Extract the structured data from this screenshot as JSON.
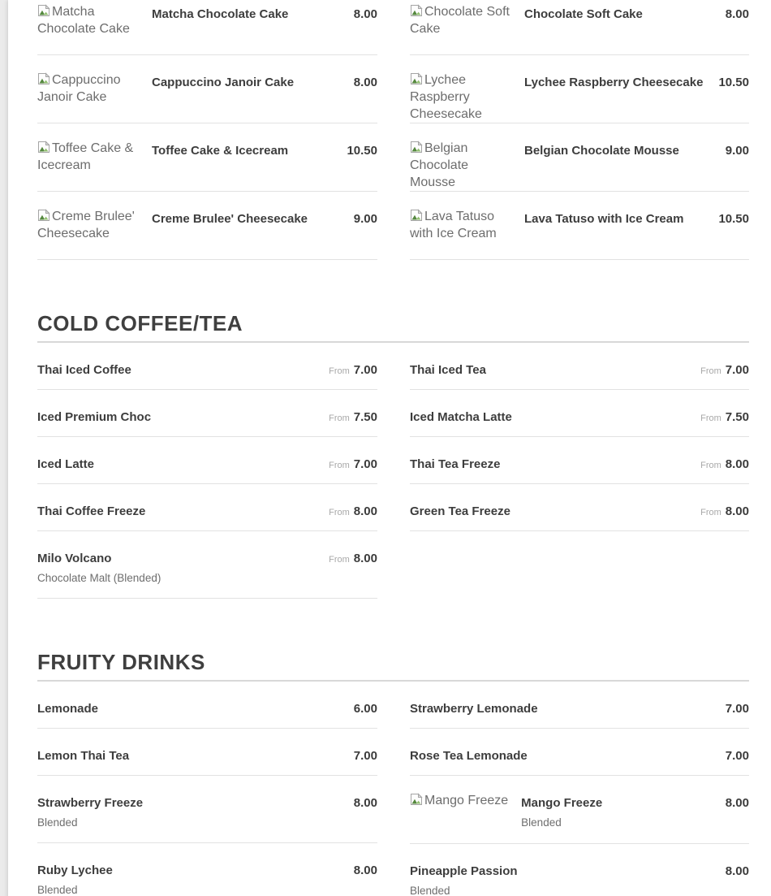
{
  "colors": {
    "page_background": "#ebebeb",
    "card_background": "#ffffff",
    "text_dark": "#3d3d3d",
    "text_muted": "#6d6d6d",
    "from_label_color": "#a8a8a8",
    "divider": "#e2e2e2"
  },
  "icons": {
    "broken_image": "broken-image-icon"
  },
  "menu": {
    "from_label": "From",
    "sections": [
      {
        "heading": null,
        "columns": [
          [
            {
              "name": "Matcha Chocolate Cake",
              "price": "8.00",
              "image_alt": "Matcha Chocolate Cake"
            },
            {
              "name": "Cappuccino Janoir Cake",
              "price": "8.00",
              "image_alt": "Cappuccino Janoir Cake"
            },
            {
              "name": "Toffee Cake & Icecream",
              "price": "10.50",
              "image_alt": "Toffee Cake & Icecream"
            },
            {
              "name": "Creme Brulee' Cheesecake",
              "price": "9.00",
              "image_alt": "Creme Brulee' Cheesecake"
            }
          ],
          [
            {
              "name": "Chocolate Soft Cake",
              "price": "8.00",
              "image_alt": "Chocolate Soft Cake"
            },
            {
              "name": "Lychee Raspberry Cheesecake",
              "price": "10.50",
              "image_alt": "Lychee Raspberry Cheesecake"
            },
            {
              "name": "Belgian Chocolate Mousse",
              "price": "9.00",
              "image_alt": "Belgian Chocolate Mousse"
            },
            {
              "name": "Lava Tatuso with Ice Cream",
              "price": "10.50",
              "image_alt": "Lava Tatuso with Ice Cream"
            }
          ]
        ]
      },
      {
        "heading": "COLD COFFEE/TEA",
        "columns": [
          [
            {
              "name": "Thai Iced Coffee",
              "price": "7.00",
              "from": true
            },
            {
              "name": "Iced Premium Choc",
              "price": "7.50",
              "from": true
            },
            {
              "name": "Iced Latte",
              "price": "7.00",
              "from": true
            },
            {
              "name": "Thai Coffee Freeze",
              "price": "8.00",
              "from": true
            },
            {
              "name": "Milo Volcano",
              "price": "8.00",
              "from": true,
              "subtitle": "Chocolate Malt (Blended)"
            }
          ],
          [
            {
              "name": "Thai Iced Tea",
              "price": "7.00",
              "from": true
            },
            {
              "name": "Iced Matcha Latte",
              "price": "7.50",
              "from": true
            },
            {
              "name": "Thai Tea Freeze",
              "price": "8.00",
              "from": true
            },
            {
              "name": "Green Tea Freeze",
              "price": "8.00",
              "from": true
            }
          ]
        ]
      },
      {
        "heading": "FRUITY DRINKS",
        "columns": [
          [
            {
              "name": "Lemonade",
              "price": "6.00"
            },
            {
              "name": "Lemon Thai Tea",
              "price": "7.00"
            },
            {
              "name": "Strawberry Freeze",
              "price": "8.00",
              "subtitle": "Blended"
            },
            {
              "name": "Ruby Lychee",
              "price": "8.00",
              "subtitle": "Blended"
            }
          ],
          [
            {
              "name": "Strawberry Lemonade",
              "price": "7.00"
            },
            {
              "name": "Rose Tea Lemonade",
              "price": "7.00"
            },
            {
              "name": "Mango Freeze",
              "price": "8.00",
              "subtitle": "Blended",
              "image_alt": "Mango Freeze"
            },
            {
              "name": "Pineapple Passion",
              "price": "8.00",
              "subtitle": "Blended"
            }
          ]
        ]
      }
    ]
  }
}
